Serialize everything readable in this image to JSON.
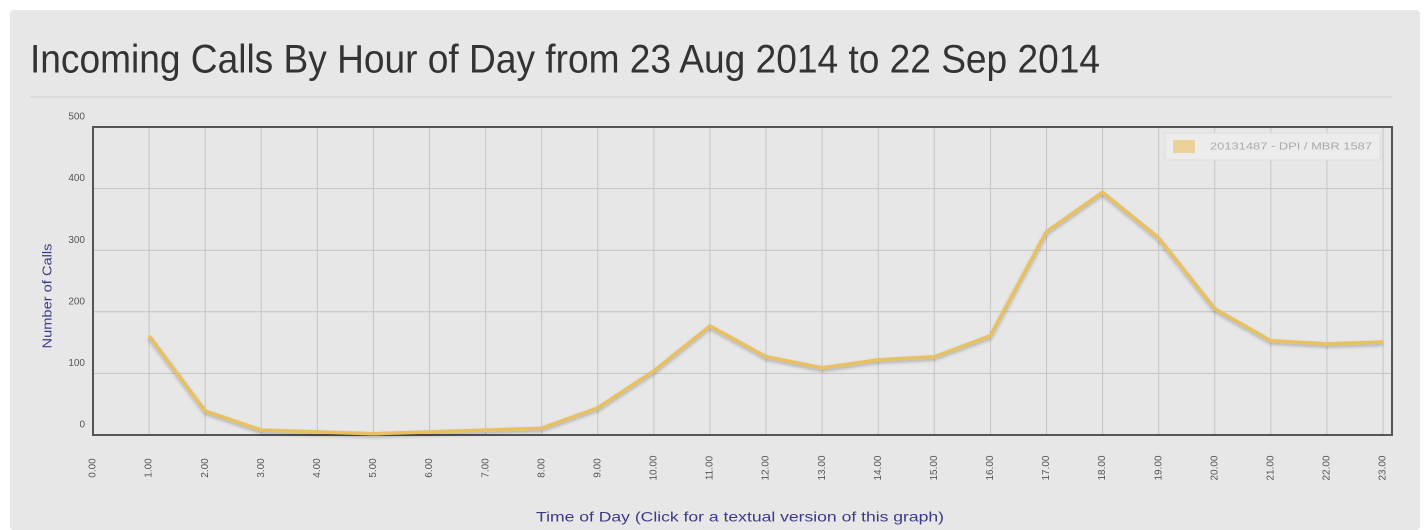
{
  "chart_data": {
    "type": "line",
    "title": "Incoming Calls By Hour of Day from 23 Aug 2014 to 22 Sep 2014",
    "xlabel": "Time of Day (Click for a textual version of this graph)",
    "ylabel": "Number of Calls",
    "x": [
      1,
      2,
      3,
      4,
      5,
      6,
      7,
      8,
      9,
      10,
      11,
      12,
      13,
      14,
      15,
      16,
      17,
      18,
      19,
      20,
      21,
      22,
      23
    ],
    "series": [
      {
        "name": "20131487 - DPI / MBR 1587",
        "color": "#e8c060",
        "values": [
          161,
          39,
          8,
          5,
          2,
          5,
          8,
          11,
          44,
          104,
          177,
          127,
          109,
          122,
          127,
          161,
          330,
          394,
          320,
          205,
          153,
          148,
          151
        ]
      }
    ],
    "xlim": [
      0,
      23.16
    ],
    "xticks": [
      {
        "value": 0,
        "label": "0.00"
      },
      {
        "value": 1,
        "label": "1.00"
      },
      {
        "value": 2,
        "label": "2.00"
      },
      {
        "value": 3,
        "label": "3.00"
      },
      {
        "value": 4,
        "label": "4.00"
      },
      {
        "value": 5,
        "label": "5.00"
      },
      {
        "value": 6,
        "label": "6.00"
      },
      {
        "value": 7,
        "label": "7.00"
      },
      {
        "value": 8,
        "label": "8.00"
      },
      {
        "value": 9,
        "label": "9.00"
      },
      {
        "value": 10,
        "label": "10.00"
      },
      {
        "value": 11,
        "label": "11.00"
      },
      {
        "value": 12,
        "label": "12.00"
      },
      {
        "value": 13,
        "label": "13.00"
      },
      {
        "value": 14,
        "label": "14.00"
      },
      {
        "value": 15,
        "label": "15.00"
      },
      {
        "value": 16,
        "label": "16.00"
      },
      {
        "value": 17,
        "label": "17.00"
      },
      {
        "value": 18,
        "label": "18.00"
      },
      {
        "value": 19,
        "label": "19.00"
      },
      {
        "value": 20,
        "label": "20.00"
      },
      {
        "value": 21,
        "label": "21.00"
      },
      {
        "value": 22,
        "label": "22.00"
      },
      {
        "value": 23,
        "label": "23.00"
      }
    ],
    "ylim": [
      0,
      500
    ],
    "yticks": [
      0,
      100,
      200,
      300,
      400,
      500
    ],
    "grid": true,
    "legend": "upper right"
  }
}
